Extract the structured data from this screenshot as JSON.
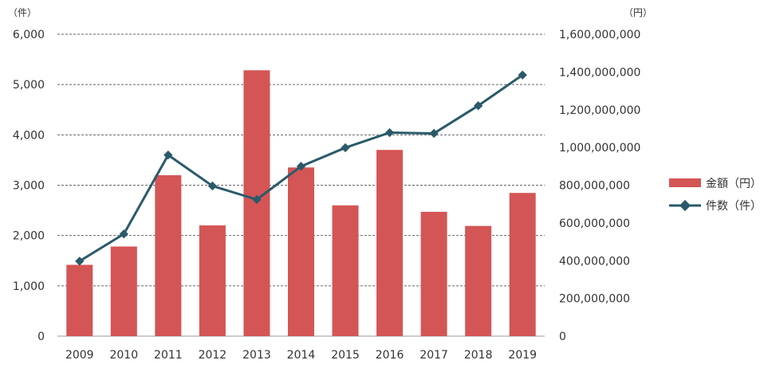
{
  "chart_data": {
    "type": "bar+line",
    "categories": [
      "2009",
      "2010",
      "2011",
      "2012",
      "2013",
      "2014",
      "2015",
      "2016",
      "2017",
      "2018",
      "2019"
    ],
    "series": [
      {
        "name": "金額（円）",
        "type": "bar",
        "axis": "right",
        "color": "#d45555",
        "values": [
          378000000,
          475000000,
          853000000,
          587000000,
          1409000000,
          894000000,
          693000000,
          987000000,
          659000000,
          584000000,
          759000000
        ]
      },
      {
        "name": "件数（件）",
        "type": "line",
        "axis": "left",
        "color": "#2a5a6a",
        "values": [
          1490,
          2030,
          3600,
          2985,
          2715,
          3375,
          3745,
          4045,
          4030,
          4580,
          5190
        ]
      }
    ],
    "left_axis": {
      "unit": "（件）",
      "min": 0,
      "max": 6000,
      "ticks": [
        0,
        1000,
        2000,
        3000,
        4000,
        5000,
        6000
      ],
      "tick_labels": [
        "0",
        "1,000",
        "2,000",
        "3,000",
        "4,000",
        "5,000",
        "6,000"
      ]
    },
    "right_axis": {
      "unit": "（円）",
      "min": 0,
      "max": 1600000000,
      "ticks": [
        0,
        200000000,
        400000000,
        600000000,
        800000000,
        1000000000,
        1200000000,
        1400000000,
        1600000000
      ],
      "tick_labels": [
        "0",
        "200,000,000",
        "400,000,000",
        "600,000,000",
        "800,000,000",
        "1,000,000,000",
        "1,200,000,000",
        "1,400,000,000",
        "1,600,000,000"
      ]
    },
    "grid": true,
    "grid_style": "dashed",
    "legend_position": "right"
  }
}
